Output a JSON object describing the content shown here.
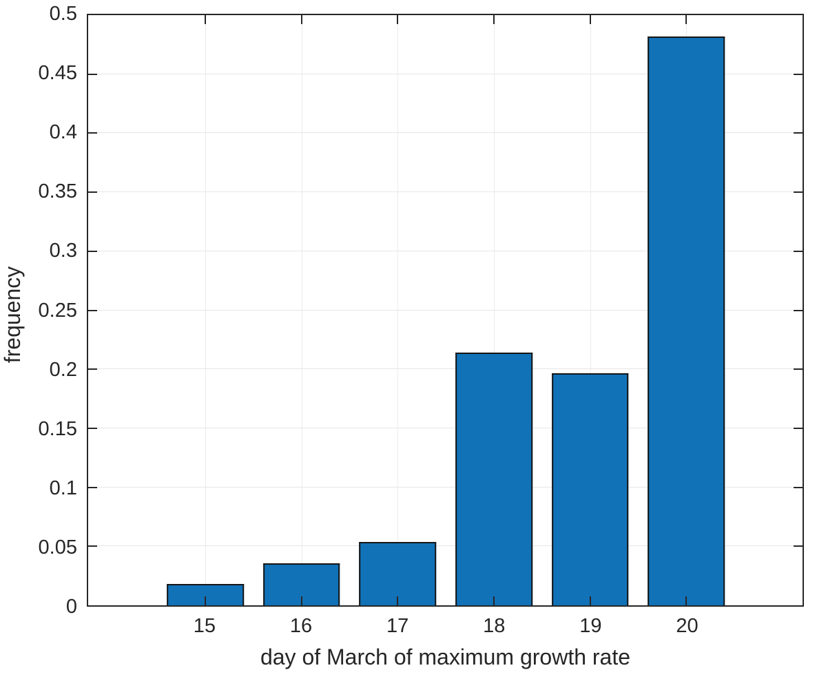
{
  "chart_data": {
    "type": "bar",
    "title": "",
    "xlabel": "day of March of maximum growth rate",
    "ylabel": "frequency",
    "categories": [
      15,
      16,
      17,
      18,
      19,
      20
    ],
    "values": [
      0.0179,
      0.0357,
      0.0536,
      0.2143,
      0.1964,
      0.4821
    ],
    "series": [
      {
        "name": "frequency",
        "values": [
          0.0179,
          0.0357,
          0.0536,
          0.2143,
          0.1964,
          0.4821
        ]
      }
    ],
    "bar_width_units": 0.8,
    "xlim": [
      13.78,
      21.21
    ],
    "ylim": [
      0,
      0.5
    ],
    "xticks": [
      {
        "v": 15,
        "label": "15"
      },
      {
        "v": 16,
        "label": "16"
      },
      {
        "v": 17,
        "label": "17"
      },
      {
        "v": 18,
        "label": "18"
      },
      {
        "v": 19,
        "label": "19"
      },
      {
        "v": 20,
        "label": "20"
      }
    ],
    "yticks": [
      {
        "v": 0,
        "label": "0"
      },
      {
        "v": 0.05,
        "label": "0.05"
      },
      {
        "v": 0.1,
        "label": "0.1"
      },
      {
        "v": 0.15,
        "label": "0.15"
      },
      {
        "v": 0.2,
        "label": "0.2"
      },
      {
        "v": 0.25,
        "label": "0.25"
      },
      {
        "v": 0.3,
        "label": "0.3"
      },
      {
        "v": 0.35,
        "label": "0.35"
      },
      {
        "v": 0.4,
        "label": "0.4"
      },
      {
        "v": 0.45,
        "label": "0.45"
      },
      {
        "v": 0.5,
        "label": "0.5"
      }
    ],
    "grid": true,
    "legend": null,
    "colors": {
      "bar_fill": "#1272b7",
      "bar_edge": "#151515",
      "axis": "#262626",
      "grid_line": "#e6e6e6",
      "text": "#262626",
      "background": "#ffffff"
    }
  }
}
